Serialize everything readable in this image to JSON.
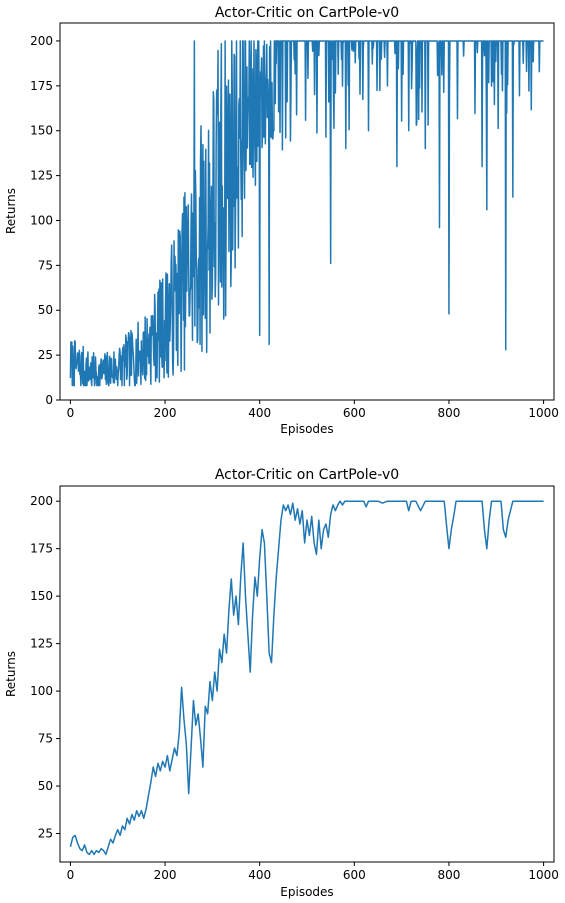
{
  "chart_data": [
    {
      "type": "line",
      "title": "Actor-Critic on CartPole-v0",
      "xlabel": "Episodes",
      "ylabel": "Returns",
      "xlim": [
        -22,
        1022
      ],
      "ylim": [
        0,
        210
      ],
      "xticks": [
        0,
        200,
        400,
        600,
        800,
        1000
      ],
      "yticks": [
        0,
        25,
        50,
        75,
        100,
        125,
        150,
        175,
        200
      ],
      "grid": false,
      "color": "#1f77b4",
      "series": [
        {
          "anchors": [
            [
              0,
              20
            ],
            [
              60,
              14
            ],
            [
              100,
              18
            ],
            [
              150,
              26
            ],
            [
              200,
              42
            ],
            [
              250,
              72
            ],
            [
              300,
              105
            ],
            [
              350,
              145
            ],
            [
              400,
              175
            ],
            [
              450,
              190
            ],
            [
              500,
              193
            ],
            [
              550,
              195
            ],
            [
              600,
              198
            ],
            [
              700,
              199
            ],
            [
              800,
              199
            ],
            [
              900,
              199
            ],
            [
              1000,
              200
            ]
          ],
          "noise": 0.75,
          "seed": 7,
          "dips": [
            [
              262,
              200
            ],
            [
              268,
              32
            ],
            [
              400,
              36
            ],
            [
              420,
              31
            ],
            [
              550,
              76
            ],
            [
              582,
              140
            ],
            [
              610,
              190
            ],
            [
              640,
              196
            ],
            [
              690,
              130
            ],
            [
              715,
              150
            ],
            [
              750,
              140
            ],
            [
              780,
              96
            ],
            [
              800,
              48
            ],
            [
              870,
              130
            ],
            [
              880,
              106
            ],
            [
              920,
              28
            ],
            [
              935,
              113
            ]
          ]
        }
      ]
    },
    {
      "type": "line",
      "title": "Actor-Critic on CartPole-v0",
      "xlabel": "Episodes",
      "ylabel": "Returns",
      "xlim": [
        -22,
        1022
      ],
      "ylim": [
        10,
        208
      ],
      "xticks": [
        0,
        200,
        400,
        600,
        800,
        1000
      ],
      "yticks": [
        25,
        50,
        75,
        100,
        125,
        150,
        175,
        200
      ],
      "grid": false,
      "color": "#1f77b4",
      "series": [
        {
          "points": [
            [
              0,
              18
            ],
            [
              5,
              23
            ],
            [
              10,
              24
            ],
            [
              15,
              20
            ],
            [
              20,
              17
            ],
            [
              25,
              16
            ],
            [
              30,
              19
            ],
            [
              35,
              15
            ],
            [
              40,
              14
            ],
            [
              45,
              16
            ],
            [
              50,
              14
            ],
            [
              55,
              16
            ],
            [
              60,
              15
            ],
            [
              65,
              17
            ],
            [
              70,
              16
            ],
            [
              75,
              14
            ],
            [
              80,
              18
            ],
            [
              85,
              22
            ],
            [
              90,
              20
            ],
            [
              95,
              24
            ],
            [
              100,
              27
            ],
            [
              105,
              24
            ],
            [
              110,
              29
            ],
            [
              115,
              27
            ],
            [
              120,
              33
            ],
            [
              125,
              30
            ],
            [
              130,
              35
            ],
            [
              135,
              32
            ],
            [
              140,
              37
            ],
            [
              145,
              34
            ],
            [
              150,
              37
            ],
            [
              155,
              33
            ],
            [
              160,
              38
            ],
            [
              165,
              45
            ],
            [
              170,
              52
            ],
            [
              175,
              60
            ],
            [
              180,
              55
            ],
            [
              185,
              62
            ],
            [
              190,
              58
            ],
            [
              195,
              63
            ],
            [
              200,
              60
            ],
            [
              205,
              66
            ],
            [
              210,
              58
            ],
            [
              215,
              64
            ],
            [
              220,
              70
            ],
            [
              225,
              66
            ],
            [
              230,
              78
            ],
            [
              235,
              102
            ],
            [
              240,
              85
            ],
            [
              245,
              72
            ],
            [
              250,
              46
            ],
            [
              255,
              70
            ],
            [
              260,
              95
            ],
            [
              265,
              82
            ],
            [
              270,
              88
            ],
            [
              275,
              75
            ],
            [
              280,
              60
            ],
            [
              285,
              92
            ],
            [
              290,
              88
            ],
            [
              295,
              105
            ],
            [
              300,
              95
            ],
            [
              305,
              110
            ],
            [
              310,
              100
            ],
            [
              315,
              122
            ],
            [
              320,
              115
            ],
            [
              325,
              130
            ],
            [
              330,
              120
            ],
            [
              335,
              143
            ],
            [
              340,
              159
            ],
            [
              345,
              140
            ],
            [
              350,
              150
            ],
            [
              355,
              135
            ],
            [
              360,
              160
            ],
            [
              365,
              178
            ],
            [
              370,
              150
            ],
            [
              375,
              130
            ],
            [
              380,
              110
            ],
            [
              385,
              140
            ],
            [
              390,
              160
            ],
            [
              395,
              150
            ],
            [
              400,
              170
            ],
            [
              405,
              185
            ],
            [
              410,
              178
            ],
            [
              415,
              150
            ],
            [
              420,
              120
            ],
            [
              425,
              115
            ],
            [
              430,
              140
            ],
            [
              435,
              160
            ],
            [
              440,
              175
            ],
            [
              445,
              190
            ],
            [
              450,
              198
            ],
            [
              455,
              195
            ],
            [
              460,
              198
            ],
            [
              465,
              193
            ],
            [
              470,
              199
            ],
            [
              475,
              190
            ],
            [
              480,
              196
            ],
            [
              485,
              188
            ],
            [
              490,
              195
            ],
            [
              495,
              178
            ],
            [
              500,
              190
            ],
            [
              505,
              182
            ],
            [
              510,
              192
            ],
            [
              515,
              178
            ],
            [
              520,
              172
            ],
            [
              525,
              190
            ],
            [
              530,
              175
            ],
            [
              535,
              185
            ],
            [
              540,
              188
            ],
            [
              545,
              181
            ],
            [
              550,
              193
            ],
            [
              555,
              198
            ],
            [
              560,
              195
            ],
            [
              565,
              198
            ],
            [
              570,
              200
            ],
            [
              575,
              198
            ],
            [
              580,
              200
            ],
            [
              590,
              200
            ],
            [
              600,
              200
            ],
            [
              610,
              200
            ],
            [
              620,
              200
            ],
            [
              625,
              197
            ],
            [
              630,
              200
            ],
            [
              640,
              200
            ],
            [
              650,
              200
            ],
            [
              660,
              199
            ],
            [
              670,
              200
            ],
            [
              680,
              200
            ],
            [
              690,
              200
            ],
            [
              700,
              200
            ],
            [
              710,
              200
            ],
            [
              715,
              195
            ],
            [
              720,
              200
            ],
            [
              730,
              200
            ],
            [
              740,
              195
            ],
            [
              750,
              200
            ],
            [
              760,
              200
            ],
            [
              770,
              200
            ],
            [
              780,
              200
            ],
            [
              790,
              200
            ],
            [
              795,
              187
            ],
            [
              800,
              175
            ],
            [
              805,
              185
            ],
            [
              810,
              192
            ],
            [
              815,
              200
            ],
            [
              820,
              200
            ],
            [
              830,
              200
            ],
            [
              840,
              200
            ],
            [
              850,
              200
            ],
            [
              860,
              200
            ],
            [
              870,
              200
            ],
            [
              875,
              185
            ],
            [
              880,
              175
            ],
            [
              885,
              190
            ],
            [
              890,
              200
            ],
            [
              900,
              200
            ],
            [
              910,
              200
            ],
            [
              915,
              185
            ],
            [
              920,
              181
            ],
            [
              925,
              190
            ],
            [
              930,
              195
            ],
            [
              935,
              200
            ],
            [
              940,
              200
            ],
            [
              950,
              200
            ],
            [
              960,
              200
            ],
            [
              970,
              200
            ],
            [
              980,
              200
            ],
            [
              990,
              200
            ],
            [
              1000,
              200
            ]
          ]
        }
      ]
    }
  ]
}
